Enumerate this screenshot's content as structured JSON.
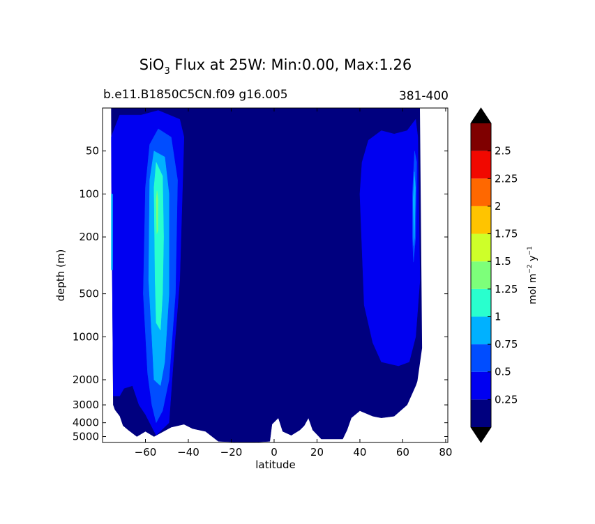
{
  "chart_data": {
    "type": "contourf",
    "title": {
      "main_prefix": "SiO",
      "main_subscript": "3",
      "main_suffix": " Flux at 25W: Min:0.00, Max:1.26"
    },
    "left_subtitle": "b.e11.B1850C5CN.f09 g16.005",
    "right_subtitle": "381-400",
    "xlabel": "latitude",
    "ylabel": "depth (m)",
    "xlim": [
      -80,
      81
    ],
    "x_ticks": [
      -60,
      -40,
      -20,
      0,
      20,
      40,
      60,
      80
    ],
    "x_tick_labels": [
      "−60",
      "−40",
      "−20",
      "0",
      "20",
      "40",
      "60",
      "80"
    ],
    "y_scale": "log (depth, increasing downward)",
    "ylim": [
      25,
      5500
    ],
    "y_ticks": [
      50,
      100,
      200,
      500,
      1000,
      2000,
      3000,
      4000,
      5000
    ],
    "y_tick_labels": [
      "50",
      "100",
      "200",
      "500",
      "1000",
      "2000",
      "3000",
      "4000",
      "5000"
    ],
    "colorbar": {
      "label_prefix": "mol m",
      "label_exp1": "−2",
      "label_mid": " y",
      "label_exp2": "−1",
      "levels": [
        0,
        0.25,
        0.5,
        0.75,
        1,
        1.25,
        1.5,
        1.75,
        2,
        2.25,
        2.5,
        2.75
      ],
      "tick_values": [
        0.25,
        0.5,
        0.75,
        1,
        1.25,
        1.5,
        1.75,
        2,
        2.25,
        2.5
      ],
      "tick_labels": [
        "0.25",
        "0.5",
        "0.75",
        "1",
        "1.25",
        "1.5",
        "1.75",
        "2",
        "2.25",
        "2.5"
      ],
      "colors": [
        "#00007f",
        "#0000f1",
        "#004dff",
        "#00b1ff",
        "#29ffce",
        "#7dff7a",
        "#ceff29",
        "#ffc400",
        "#ff6800",
        "#f10800",
        "#7f0000"
      ],
      "extend": "both"
    },
    "grid": false,
    "regions": [
      {
        "level": "0-0.25",
        "color": "#00007f",
        "points": [
          [
            -76,
            25
          ],
          [
            68,
            25
          ],
          [
            70,
            1500
          ],
          [
            66,
            2200
          ],
          [
            62,
            3000
          ],
          [
            56,
            3600
          ],
          [
            50,
            3700
          ],
          [
            46,
            3600
          ],
          [
            40,
            3300
          ],
          [
            36,
            3700
          ],
          [
            34,
            4500
          ],
          [
            32,
            5200
          ],
          [
            22,
            5200
          ],
          [
            18,
            4500
          ],
          [
            16,
            3700
          ],
          [
            14,
            4200
          ],
          [
            12,
            4500
          ],
          [
            8,
            4900
          ],
          [
            4,
            4600
          ],
          [
            2,
            3700
          ],
          [
            -1,
            4100
          ],
          [
            -2,
            5400
          ],
          [
            -12,
            5500
          ],
          [
            -26,
            5400
          ],
          [
            -32,
            4600
          ],
          [
            -38,
            4400
          ],
          [
            -42,
            4100
          ],
          [
            -48,
            4300
          ],
          [
            -56,
            5000
          ],
          [
            -60,
            4600
          ],
          [
            -64,
            5000
          ],
          [
            -68,
            4500
          ],
          [
            -72,
            4000
          ],
          [
            -75,
            3000
          ]
        ]
      },
      {
        "level": "0.25-0.5 (southern)",
        "color": "#0000f1",
        "points": [
          [
            -76,
            40
          ],
          [
            -72,
            28
          ],
          [
            -62,
            28
          ],
          [
            -54,
            26
          ],
          [
            -44,
            30
          ],
          [
            -42,
            40
          ],
          [
            -44,
            400
          ],
          [
            -47,
            1500
          ],
          [
            -49,
            4000
          ],
          [
            -55,
            4900
          ],
          [
            -60,
            3500
          ],
          [
            -63,
            3000
          ],
          [
            -66,
            2200
          ],
          [
            -70,
            2300
          ],
          [
            -72,
            2600
          ],
          [
            -75,
            2600
          ]
        ]
      },
      {
        "level": "0.25-0.5 (northern)",
        "color": "#0000f1",
        "points": [
          [
            40,
            100
          ],
          [
            41,
            60
          ],
          [
            44,
            42
          ],
          [
            50,
            36
          ],
          [
            56,
            38
          ],
          [
            62,
            36
          ],
          [
            66,
            30
          ],
          [
            67,
            40
          ],
          [
            68,
            400
          ],
          [
            66,
            1000
          ],
          [
            63,
            1500
          ],
          [
            58,
            1600
          ],
          [
            50,
            1500
          ],
          [
            46,
            1100
          ],
          [
            42,
            600
          ]
        ]
      },
      {
        "level": "0.5-0.75 (southern)",
        "color": "#004dff",
        "points": [
          [
            -60,
            90
          ],
          [
            -58,
            45
          ],
          [
            -54,
            35
          ],
          [
            -48,
            40
          ],
          [
            -45,
            80
          ],
          [
            -46,
            500
          ],
          [
            -49,
            2000
          ],
          [
            -52,
            3300
          ],
          [
            -55,
            4000
          ],
          [
            -57,
            3000
          ],
          [
            -59,
            1800
          ],
          [
            -61,
            500
          ]
        ]
      },
      {
        "level": "0.5-0.75 (northern)",
        "color": "#004dff",
        "points": [
          [
            64.5,
            100
          ],
          [
            65.5,
            50
          ],
          [
            66.5,
            60
          ],
          [
            66,
            200
          ],
          [
            65,
            300
          ],
          [
            64.5,
            200
          ]
        ]
      },
      {
        "level": "0.75-1 (southern)",
        "color": "#00b1ff",
        "points": [
          [
            -58,
            80
          ],
          [
            -56,
            50
          ],
          [
            -51,
            55
          ],
          [
            -49,
            100
          ],
          [
            -49,
            500
          ],
          [
            -51,
            1500
          ],
          [
            -53,
            2200
          ],
          [
            -56,
            2000
          ],
          [
            -57,
            1000
          ],
          [
            -58.5,
            400
          ]
        ]
      },
      {
        "level": "0.75-1 (northern)",
        "color": "#00b1ff",
        "points": [
          [
            64.8,
            110
          ],
          [
            65.4,
            70
          ],
          [
            65.9,
            90
          ],
          [
            65.5,
            200
          ],
          [
            65.1,
            230
          ]
        ]
      },
      {
        "level": "0.75-1 (western edge)",
        "color": "#00b1ff",
        "points": [
          [
            -76.2,
            100
          ],
          [
            -75.3,
            100
          ],
          [
            -75.3,
            340
          ],
          [
            -76.2,
            340
          ]
        ]
      },
      {
        "level": "1-1.25",
        "color": "#29ffce",
        "points": [
          [
            -56,
            90
          ],
          [
            -55,
            60
          ],
          [
            -52,
            75
          ],
          [
            -51.5,
            200
          ],
          [
            -52,
            500
          ],
          [
            -53,
            900
          ],
          [
            -55,
            800
          ],
          [
            -55.5,
            400
          ]
        ]
      },
      {
        "level": "1.25-1.5",
        "color": "#7dff7a",
        "points": [
          [
            -55,
            110
          ],
          [
            -54.6,
            95
          ],
          [
            -54.1,
            110
          ],
          [
            -54.2,
            180
          ],
          [
            -54.7,
            190
          ]
        ]
      }
    ],
    "bathymetry_regions": [
      {
        "region": "antarctic-shelf",
        "color": "#ffffff",
        "points": [
          [
            -80,
            25
          ],
          [
            -76,
            25
          ],
          [
            -76,
            3000
          ],
          [
            -72,
            3600
          ],
          [
            -70,
            4400
          ],
          [
            -67,
            5000
          ],
          [
            -80,
            5500
          ]
        ]
      },
      {
        "region": "arctic-land",
        "color": "#ffffff",
        "points": [
          [
            68,
            25
          ],
          [
            81,
            25
          ],
          [
            81,
            5500
          ],
          [
            62,
            5500
          ],
          [
            62,
            3500
          ],
          [
            66,
            2500
          ],
          [
            69,
            1200
          ]
        ]
      }
    ]
  }
}
